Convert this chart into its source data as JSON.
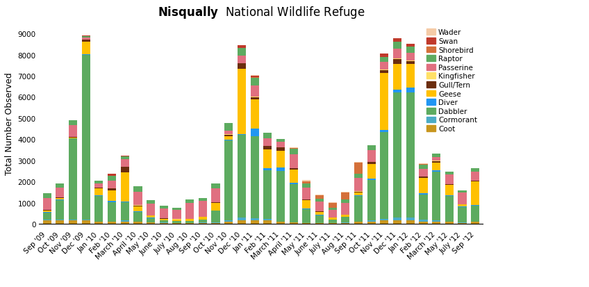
{
  "title": "Nisqually  National Wildlife Refuge",
  "ylabel": "Total Number Observed",
  "categories": [
    "Sep '09",
    "Oct '09",
    "Nov '09",
    "Dec '09",
    "Jan '10",
    "Feb '10",
    "March '10",
    "April '10",
    "May '10",
    "June '10",
    "July '10",
    "Aug '10",
    "Sep '10",
    "Oct '10",
    "Nov '10",
    "Dec '10",
    "Jan '11",
    "Feb '11",
    "March '11",
    "April '11",
    "May '11",
    "June '11",
    "July '11",
    "Aug '11",
    "Sep '11",
    "Oct '11",
    "Nov '11",
    "Dec '11",
    "Jan '12",
    "Feb '12",
    "March '12",
    "May '12",
    "July '12",
    "Sep '12"
  ],
  "guilds": [
    "Coot",
    "Cormorant",
    "Dabbler",
    "Diver",
    "Geese",
    "Gull/Tern",
    "Kingfisher",
    "Passerine",
    "Raptor",
    "Shorebird",
    "Swan",
    "Wader"
  ],
  "colors": {
    "Coot": "#c8961e",
    "Cormorant": "#5bbcd4",
    "Dabbler": "#5dab60",
    "Diver": "#1e90ff",
    "Geese": "#ffc000",
    "Gull/Tern": "#7b3200",
    "Kingfisher": "#ffd966",
    "Passerine": "#e07080",
    "Raptor": "#5dab60",
    "Shorebird": "#d4703a",
    "Swan": "#c0392b",
    "Wader": "#f5cba7"
  },
  "data": {
    "Coot": [
      150,
      150,
      150,
      150,
      80,
      80,
      80,
      80,
      50,
      30,
      30,
      30,
      30,
      30,
      80,
      150,
      150,
      150,
      80,
      50,
      30,
      30,
      30,
      30,
      80,
      80,
      150,
      150,
      150,
      100,
      80,
      80,
      30,
      80
    ],
    "Cormorant": [
      30,
      30,
      30,
      50,
      30,
      30,
      80,
      30,
      20,
      20,
      10,
      10,
      20,
      30,
      80,
      150,
      100,
      80,
      30,
      20,
      10,
      10,
      10,
      30,
      30,
      80,
      80,
      150,
      150,
      80,
      80,
      30,
      20,
      30
    ],
    "Dabbler": [
      350,
      950,
      3850,
      7800,
      1200,
      900,
      850,
      450,
      200,
      100,
      80,
      100,
      150,
      550,
      3800,
      3900,
      3900,
      2300,
      2400,
      1800,
      650,
      350,
      150,
      250,
      1200,
      1900,
      4100,
      5900,
      5900,
      1200,
      2300,
      1200,
      750,
      750
    ],
    "Diver": [
      20,
      20,
      20,
      30,
      20,
      80,
      30,
      20,
      15,
      10,
      5,
      5,
      10,
      20,
      30,
      30,
      350,
      100,
      150,
      80,
      30,
      20,
      10,
      30,
      30,
      80,
      100,
      150,
      250,
      80,
      80,
      30,
      10,
      30
    ],
    "Geese": [
      80,
      80,
      30,
      600,
      350,
      500,
      1400,
      250,
      100,
      80,
      80,
      80,
      100,
      350,
      150,
      3100,
      1400,
      900,
      800,
      600,
      400,
      150,
      80,
      80,
      150,
      700,
      2700,
      1200,
      1100,
      700,
      350,
      500,
      100,
      1100
    ],
    "Gull/Tern": [
      20,
      20,
      20,
      80,
      30,
      80,
      250,
      30,
      10,
      10,
      5,
      5,
      10,
      30,
      80,
      250,
      80,
      150,
      150,
      80,
      30,
      20,
      10,
      10,
      30,
      80,
      150,
      250,
      150,
      80,
      80,
      30,
      10,
      30
    ],
    "Kingfisher": [
      10,
      10,
      10,
      10,
      10,
      10,
      10,
      10,
      5,
      5,
      5,
      5,
      5,
      10,
      10,
      30,
      20,
      10,
      10,
      10,
      10,
      5,
      5,
      5,
      10,
      10,
      20,
      30,
      30,
      10,
      10,
      10,
      5,
      10
    ],
    "Passerine": [
      550,
      450,
      550,
      80,
      180,
      350,
      350,
      650,
      550,
      450,
      450,
      750,
      750,
      650,
      180,
      350,
      550,
      350,
      250,
      650,
      550,
      450,
      350,
      550,
      650,
      550,
      350,
      450,
      350,
      350,
      180,
      450,
      550,
      450
    ],
    "Raptor": [
      250,
      200,
      250,
      80,
      150,
      250,
      150,
      250,
      150,
      150,
      100,
      150,
      150,
      250,
      350,
      350,
      350,
      250,
      150,
      250,
      200,
      150,
      100,
      150,
      200,
      250,
      250,
      350,
      300,
      200,
      150,
      150,
      100,
      150
    ],
    "Shorebird": [
      0,
      0,
      0,
      0,
      0,
      0,
      0,
      0,
      0,
      0,
      0,
      0,
      0,
      0,
      0,
      0,
      30,
      0,
      0,
      30,
      80,
      150,
      250,
      350,
      500,
      0,
      0,
      0,
      0,
      30,
      0,
      0,
      0,
      0
    ],
    "Swan": [
      0,
      0,
      0,
      30,
      0,
      80,
      30,
      0,
      0,
      0,
      0,
      0,
      0,
      0,
      0,
      150,
      80,
      0,
      0,
      0,
      0,
      0,
      0,
      0,
      0,
      0,
      150,
      150,
      150,
      0,
      0,
      0,
      0,
      0
    ],
    "Wader": [
      0,
      0,
      0,
      0,
      0,
      0,
      0,
      0,
      0,
      0,
      0,
      0,
      0,
      0,
      0,
      0,
      30,
      0,
      0,
      30,
      80,
      30,
      10,
      20,
      30,
      0,
      0,
      0,
      0,
      30,
      0,
      0,
      0,
      0
    ]
  },
  "ylim": [
    0,
    9500
  ],
  "yticks": [
    0,
    1000,
    2000,
    3000,
    4000,
    5000,
    6000,
    7000,
    8000,
    9000
  ],
  "background_color": "#ffffff",
  "title_fontsize": 12,
  "axis_fontsize": 9,
  "tick_fontsize": 7.5
}
